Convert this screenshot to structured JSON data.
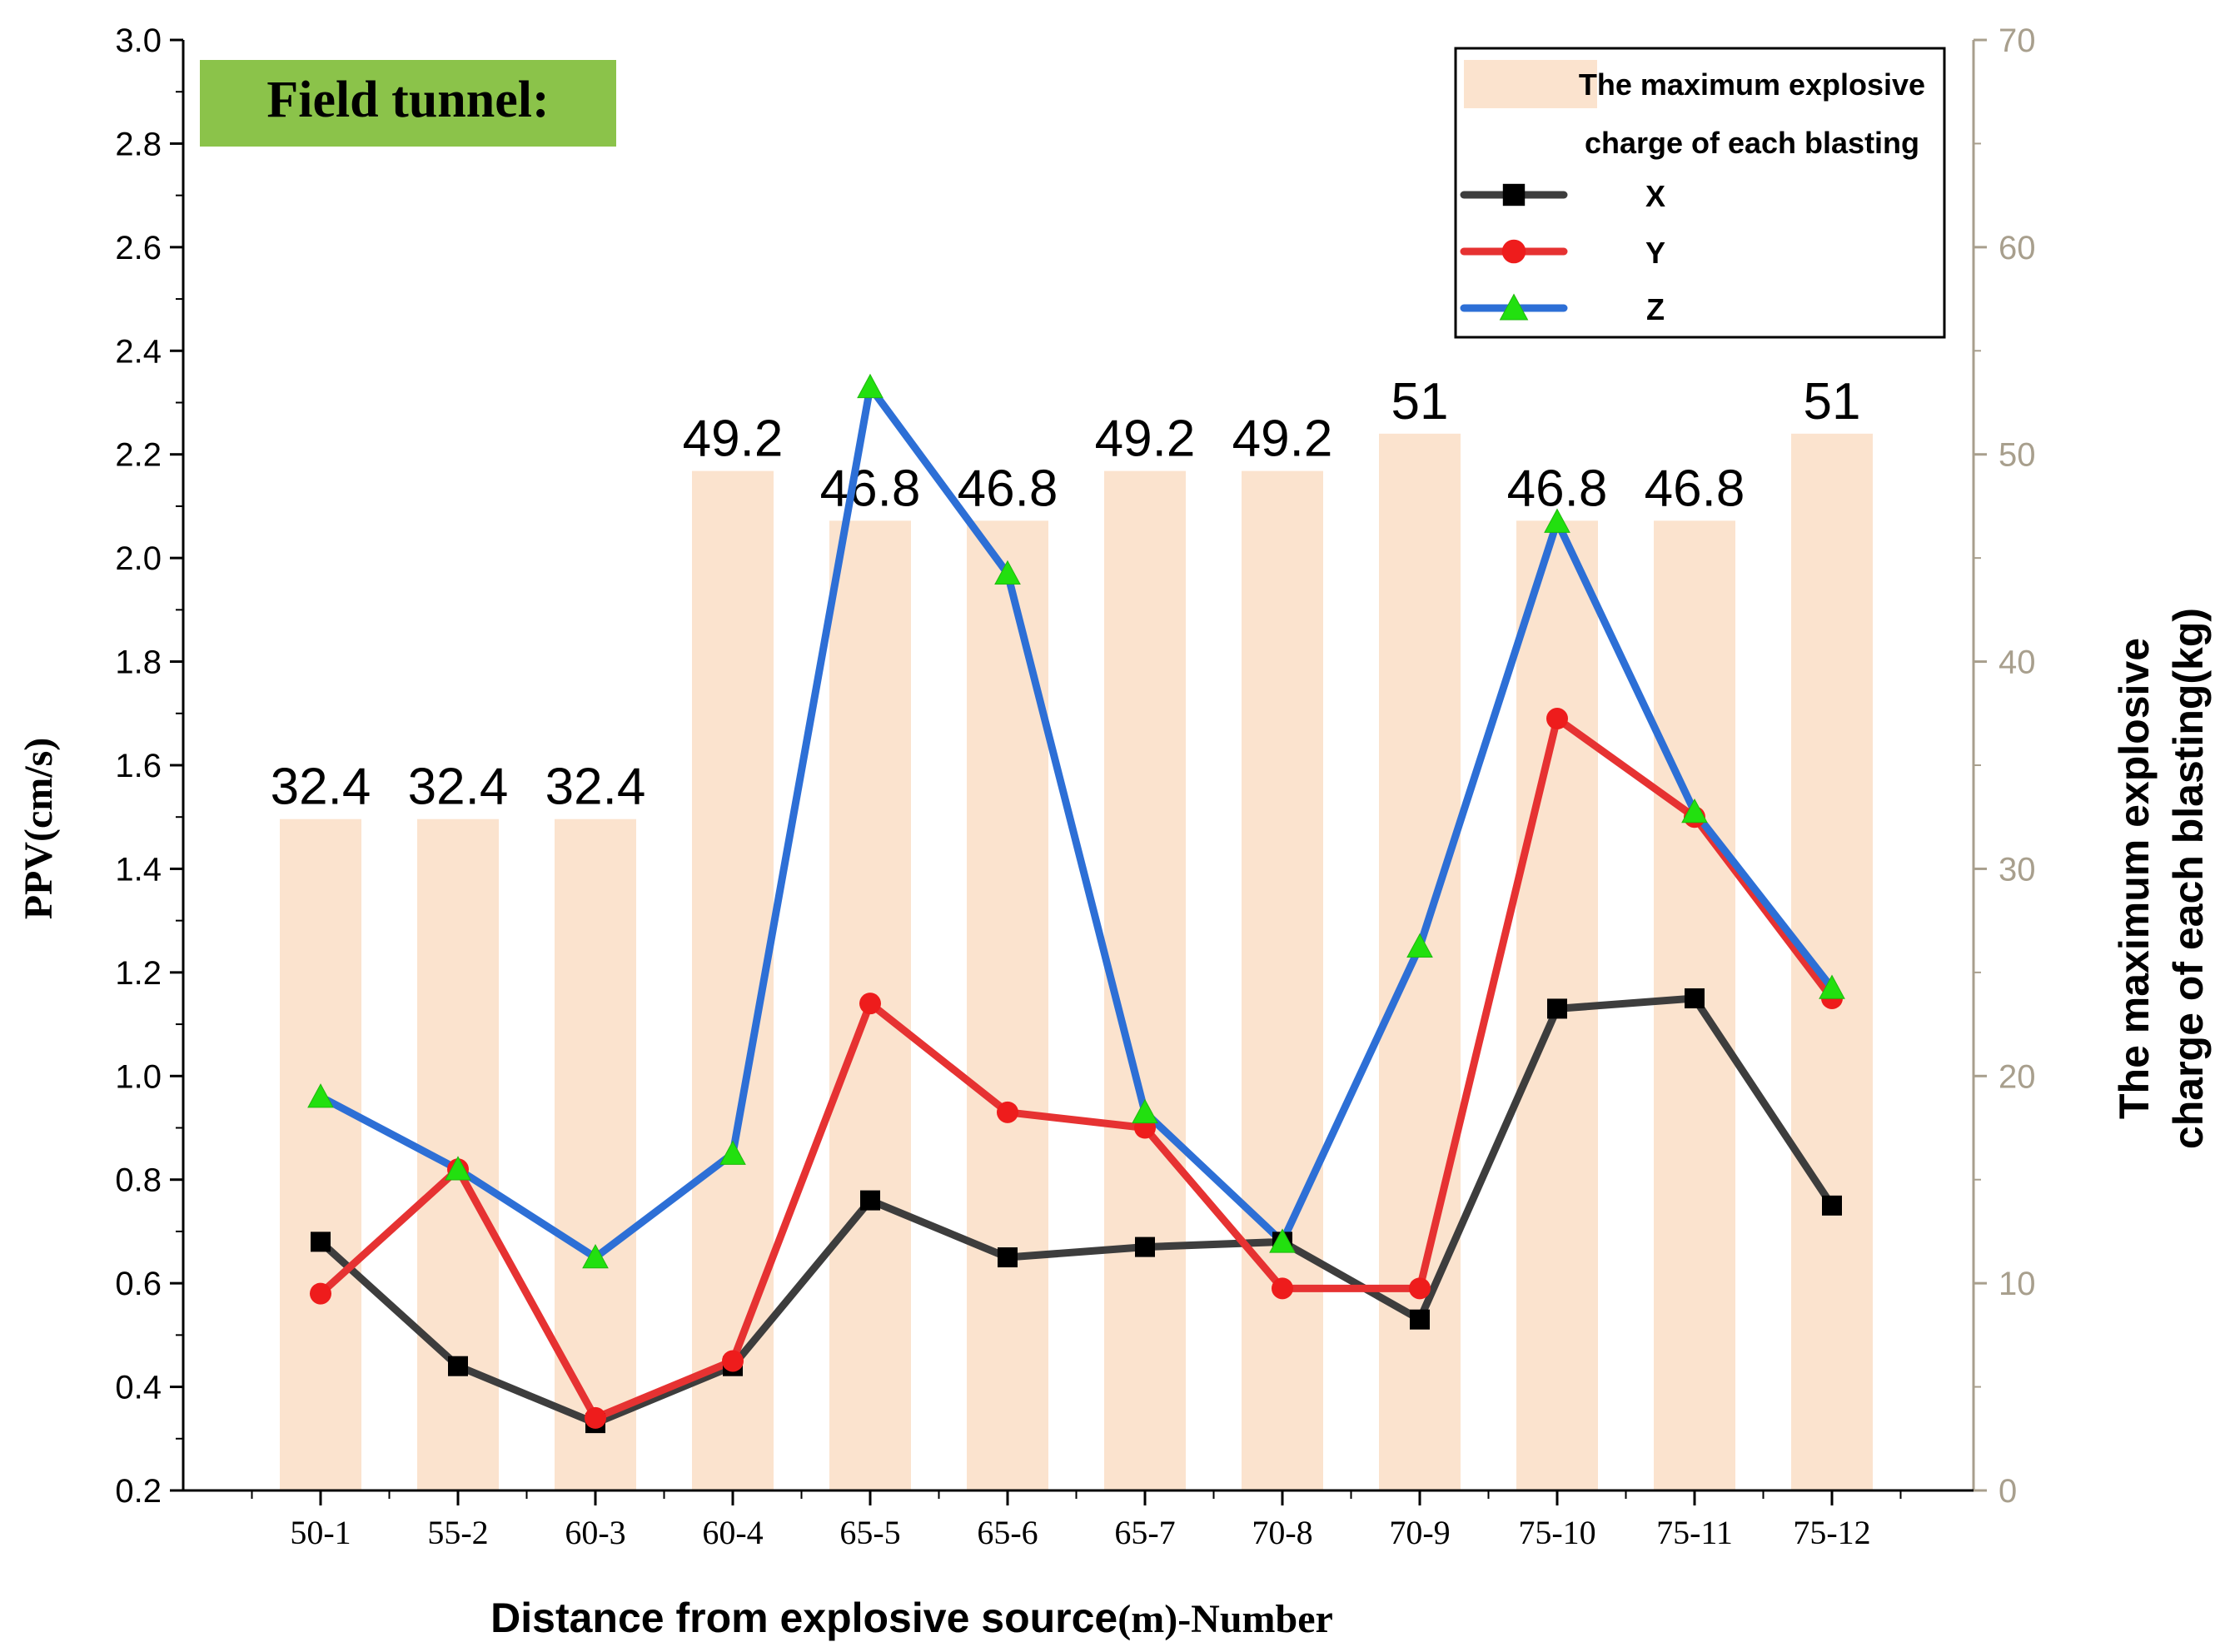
{
  "chart_data": {
    "type": "bar+line",
    "annotation": "Field tunnel:",
    "xlabel": "Distance from explosive source(m)-Number",
    "ylabel_left": "PPV(cm/s)",
    "ylabel_right_line1": "The maximum explosive",
    "ylabel_right_line2": "charge of each blasting(kg)",
    "ylim_left": [
      0.2,
      3.0
    ],
    "ylim_right": [
      0,
      70
    ],
    "yticks_left": [
      "0.2",
      "0.4",
      "0.6",
      "0.8",
      "1.0",
      "1.2",
      "1.4",
      "1.6",
      "1.8",
      "2.0",
      "2.2",
      "2.4",
      "2.6",
      "2.8",
      "3.0"
    ],
    "yticks_right": [
      "0",
      "10",
      "20",
      "30",
      "40",
      "50",
      "60",
      "70"
    ],
    "categories": [
      "50-1",
      "55-2",
      "60-3",
      "60-4",
      "65-5",
      "65-6",
      "65-7",
      "70-8",
      "70-9",
      "75-10",
      "75-11",
      "75-12"
    ],
    "bars": {
      "name": "The maximum explosive charge of each blasting",
      "legend_line1": "The maximum explosive",
      "legend_line2": "charge of each blasting",
      "values": [
        32.4,
        32.4,
        32.4,
        49.2,
        46.8,
        46.8,
        49.2,
        49.2,
        51,
        46.8,
        46.8,
        51
      ],
      "labels": [
        "32.4",
        "32.4",
        "32.4",
        "49.2",
        "46.8",
        "46.8",
        "49.2",
        "49.2",
        "51",
        "46.8",
        "46.8",
        "51"
      ],
      "color": "#fbe3ce"
    },
    "series": [
      {
        "name": "X",
        "color": "#3d3d3d",
        "marker": "square",
        "values": [
          0.68,
          0.44,
          0.33,
          0.44,
          0.76,
          0.65,
          0.67,
          0.68,
          0.53,
          1.13,
          1.15,
          0.75
        ]
      },
      {
        "name": "Y",
        "color": "#e63232",
        "marker": "circle",
        "values": [
          0.58,
          0.82,
          0.34,
          0.45,
          1.14,
          0.93,
          0.9,
          0.59,
          0.59,
          1.69,
          1.5,
          1.15
        ]
      },
      {
        "name": "Z",
        "color": "#2d6fd6",
        "marker": "triangle",
        "values": [
          0.96,
          0.82,
          0.65,
          0.85,
          2.33,
          1.97,
          0.93,
          0.68,
          1.25,
          2.07,
          1.51,
          1.17
        ]
      }
    ],
    "legend_position": "top-right",
    "annotation_color": "#8bc34a"
  }
}
